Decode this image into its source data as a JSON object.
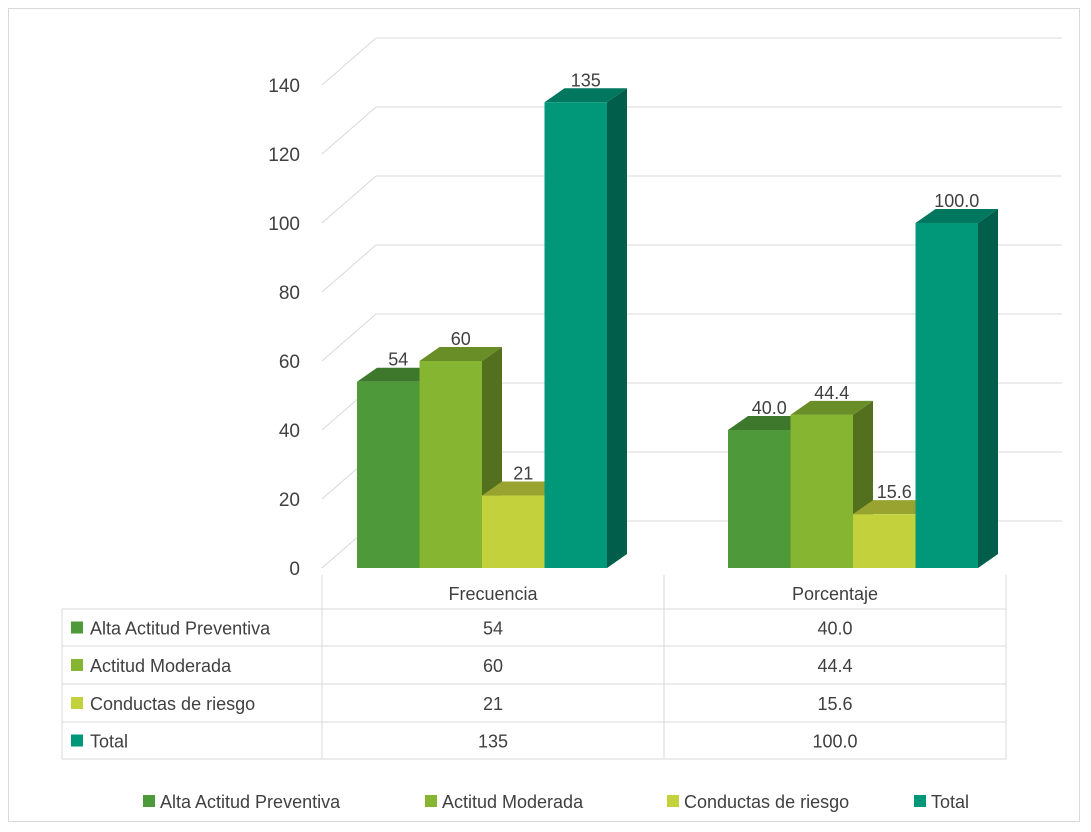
{
  "chart_data": {
    "type": "bar",
    "categories": [
      "Frecuencia",
      "Porcentaje"
    ],
    "series": [
      {
        "name": "Alta Actitud Preventiva",
        "values": [
          54,
          40.0
        ],
        "labels": [
          "54",
          "40.0"
        ],
        "color": "#4e9a3a"
      },
      {
        "name": "Actitud Moderada",
        "values": [
          60,
          44.4
        ],
        "labels": [
          "60",
          "44.4"
        ],
        "color": "#86b532"
      },
      {
        "name": "Conductas de riesgo",
        "values": [
          21,
          15.6
        ],
        "labels": [
          "21",
          "15.6"
        ],
        "color": "#c3d23c"
      },
      {
        "name": "Total",
        "values": [
          135,
          100.0
        ],
        "labels": [
          "135",
          "100.0"
        ],
        "color": "#009878"
      }
    ],
    "ylim": [
      0,
      140
    ],
    "yticks": [
      "0",
      "20",
      "40",
      "60",
      "80",
      "100",
      "120",
      "140"
    ],
    "grid": true,
    "legend_position": "bottom",
    "data_table": true
  }
}
